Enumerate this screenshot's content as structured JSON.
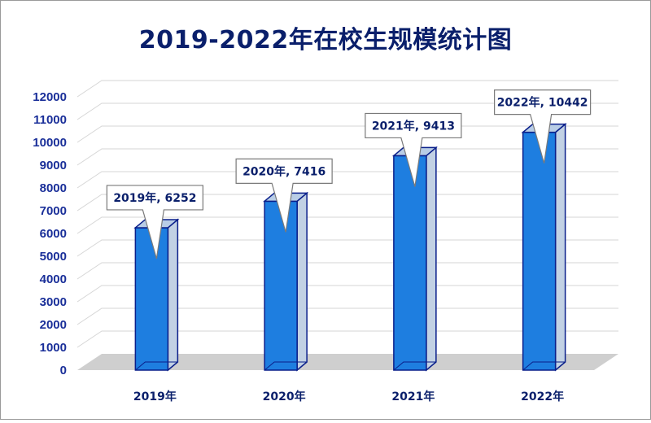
{
  "chart_data": {
    "type": "bar",
    "title": "2019-2022年在校生规模统计图",
    "categories": [
      "2019年",
      "2020年",
      "2021年",
      "2022年"
    ],
    "values": [
      6252,
      7416,
      9413,
      10442
    ],
    "data_labels": [
      "2019年, 6252",
      "2020年, 7416",
      "2021年, 9413",
      "2022年, 10442"
    ],
    "ylim": [
      0,
      12000
    ],
    "ytick_step": 1000,
    "xlabel": "",
    "ylabel": "",
    "grid": true,
    "three_d": true,
    "legend": "none",
    "colors": {
      "bar_front": "#1e7ee0",
      "bar_side": "#c2d1e4",
      "bar_top": "#b9cde6",
      "bar_outline": "#0a1f8a",
      "title": "#0a1f6b",
      "tick_text": "#1a2f99",
      "grid": "#d6d6d6",
      "floor": "#cfcfcf"
    }
  }
}
